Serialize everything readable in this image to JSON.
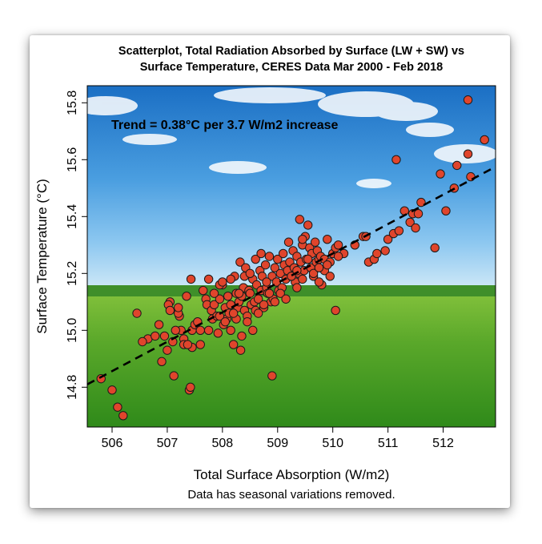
{
  "chart_data": {
    "type": "scatter",
    "title": "Scatterplot, Total Radiation Absorbed by Surface (LW + SW) vs",
    "subtitle": "Surface Temperature, CERES Data Mar 2000 - Feb 2018",
    "xlabel": "Total Surface Absorption (W/m2)",
    "ylabel": "Surface Temperature (°C)",
    "note": "Data has seasonal variations removed.",
    "annotation": "Trend = 0.38°C per 3.7 W/m2 increase",
    "xlim": [
      505.55,
      512.95
    ],
    "ylim": [
      14.66,
      15.86
    ],
    "xticks": [
      "506",
      "507",
      "508",
      "509",
      "510",
      "511",
      "512"
    ],
    "yticks": [
      "14.8",
      "15.0",
      "15.2",
      "15.4",
      "15.6",
      "15.8"
    ],
    "trend_line": {
      "x": [
        505.55,
        512.9
      ],
      "y": [
        14.81,
        15.57
      ]
    },
    "colors": {
      "marker_fill": "#e0452c",
      "marker_edge": "#1a1a1a",
      "trend_line": "#000000"
    },
    "grid": false,
    "series": [
      {
        "x": [
          505.8,
          506.0,
          506.2,
          506.45,
          506.65,
          506.78,
          506.85,
          506.95,
          507.0,
          507.05,
          507.02,
          507.1,
          507.12,
          507.22,
          507.2,
          507.25,
          507.3,
          507.35,
          507.4,
          507.42,
          507.43,
          507.45,
          507.5,
          507.55,
          507.6,
          507.65,
          507.7,
          507.72,
          507.75,
          507.8,
          507.82,
          507.85,
          507.9,
          507.92,
          507.95,
          508.0,
          508.02,
          508.05,
          508.08,
          508.1,
          508.12,
          508.15,
          508.2,
          508.22,
          508.25,
          508.28,
          508.3,
          508.32,
          508.35,
          508.38,
          508.4,
          508.42,
          508.45,
          508.48,
          508.5,
          508.52,
          508.55,
          508.58,
          508.6,
          508.62,
          508.65,
          508.68,
          508.7,
          508.72,
          508.75,
          508.78,
          508.8,
          508.82,
          508.85,
          508.88,
          508.9,
          508.92,
          508.95,
          508.98,
          509.0,
          509.02,
          509.05,
          509.08,
          509.1,
          509.12,
          509.15,
          509.18,
          509.2,
          509.22,
          509.25,
          509.28,
          509.3,
          509.32,
          509.35,
          509.38,
          509.4,
          509.42,
          509.45,
          509.48,
          509.5,
          509.52,
          509.55,
          509.58,
          509.6,
          509.62,
          509.65,
          509.68,
          509.7,
          509.72,
          509.75,
          509.78,
          509.8,
          509.85,
          509.9,
          509.95,
          510.0,
          510.05,
          510.1,
          510.2,
          510.4,
          510.55,
          510.6,
          510.65,
          510.75,
          510.8,
          510.95,
          511.0,
          511.1,
          511.15,
          511.2,
          511.3,
          511.4,
          511.45,
          511.5,
          511.55,
          511.6,
          511.85,
          511.95,
          512.05,
          512.2,
          512.25,
          512.45,
          512.5,
          512.75,
          506.1,
          506.55,
          506.9,
          507.05,
          507.15,
          507.3,
          507.45,
          507.6,
          507.75,
          507.85,
          507.95,
          508.05,
          508.15,
          508.25,
          508.35,
          508.45,
          508.55,
          508.65,
          508.75,
          508.85,
          508.95,
          509.05,
          509.15,
          509.25,
          509.35,
          509.45,
          509.55,
          509.65,
          509.75,
          509.85,
          509.95,
          507.37,
          508.33,
          508.9,
          509.35,
          509.75,
          510.05,
          508.6,
          508.15,
          507.95,
          509.45,
          508.7,
          508.3,
          507.2,
          508.0,
          508.4,
          508.5,
          509.9,
          510.1,
          508.2,
          508.8
        ],
        "y": [
          14.83,
          14.79,
          14.7,
          15.06,
          14.97,
          14.98,
          15.02,
          14.98,
          14.93,
          15.1,
          15.09,
          14.96,
          14.84,
          15.05,
          15.06,
          15.0,
          14.97,
          15.12,
          14.79,
          14.8,
          15.18,
          15.0,
          15.02,
          15.03,
          15.0,
          15.14,
          15.11,
          15.09,
          15.18,
          15.07,
          15.04,
          15.09,
          15.05,
          14.99,
          15.11,
          15.16,
          15.02,
          15.08,
          15.04,
          15.12,
          15.06,
          15.09,
          14.95,
          15.19,
          15.13,
          15.08,
          15.1,
          15.24,
          15.12,
          15.15,
          15.07,
          15.22,
          15.05,
          15.14,
          15.13,
          15.09,
          15.18,
          15.1,
          15.07,
          15.16,
          15.11,
          15.21,
          15.14,
          15.19,
          15.08,
          15.23,
          15.15,
          15.13,
          15.26,
          15.1,
          15.19,
          15.11,
          15.22,
          15.17,
          15.25,
          15.14,
          15.2,
          15.15,
          15.27,
          15.23,
          15.18,
          15.21,
          15.31,
          15.24,
          15.19,
          15.28,
          15.22,
          15.17,
          15.26,
          15.2,
          15.39,
          15.24,
          15.3,
          15.21,
          15.33,
          15.25,
          15.37,
          15.29,
          15.22,
          15.27,
          15.19,
          15.31,
          15.24,
          15.28,
          15.25,
          15.26,
          15.16,
          15.21,
          15.32,
          15.19,
          15.27,
          15.29,
          15.3,
          15.27,
          15.3,
          15.33,
          15.33,
          15.24,
          15.25,
          15.27,
          15.28,
          15.32,
          15.34,
          15.6,
          15.35,
          15.42,
          15.38,
          15.41,
          15.36,
          15.41,
          15.45,
          15.29,
          15.55,
          15.42,
          15.5,
          15.58,
          15.62,
          15.54,
          15.67,
          14.73,
          14.96,
          14.89,
          15.07,
          15.0,
          14.95,
          14.94,
          14.95,
          15.0,
          15.13,
          15.05,
          15.03,
          15.0,
          15.04,
          14.98,
          15.03,
          15.0,
          15.06,
          15.09,
          15.13,
          15.1,
          15.13,
          15.11,
          15.19,
          15.21,
          15.18,
          15.25,
          15.2,
          15.22,
          15.25,
          15.24,
          14.95,
          14.93,
          14.84,
          15.15,
          15.17,
          15.07,
          15.25,
          15.18,
          15.16,
          15.32,
          15.27,
          15.13,
          15.08,
          15.17,
          15.19,
          15.2,
          15.23,
          15.26,
          15.06,
          15.17
        ],
        "extra_y_for_highest": [
          15.81
        ]
      }
    ]
  }
}
